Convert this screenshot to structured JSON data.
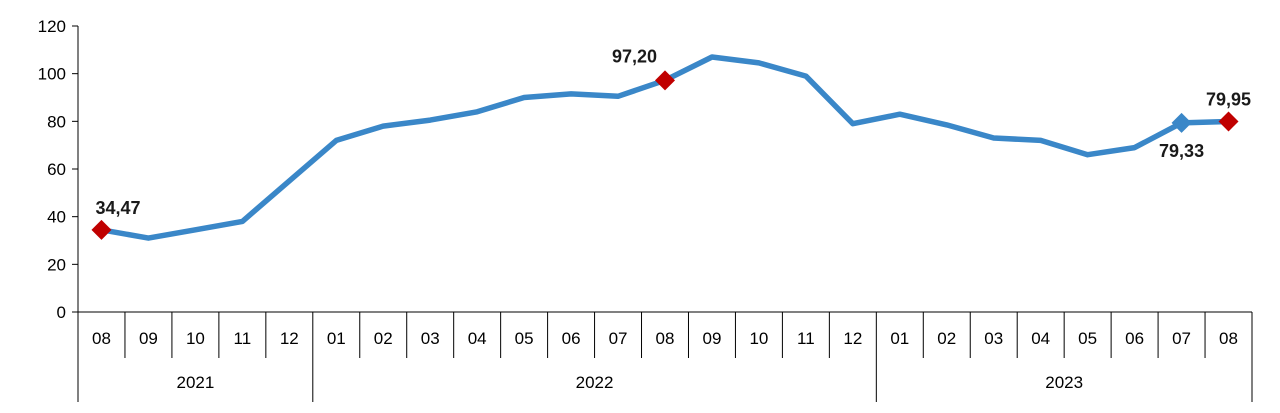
{
  "chart_data": {
    "type": "line",
    "title": "",
    "xlabel": "",
    "ylabel": "",
    "ylim": [
      0,
      120
    ],
    "yticks": [
      "0",
      "20",
      "40",
      "60",
      "80",
      "100",
      "120"
    ],
    "grid": false,
    "legend": "none",
    "categories": [
      "08",
      "09",
      "10",
      "11",
      "12",
      "01",
      "02",
      "03",
      "04",
      "05",
      "06",
      "07",
      "08",
      "09",
      "10",
      "11",
      "12",
      "01",
      "02",
      "03",
      "04",
      "05",
      "06",
      "07",
      "08"
    ],
    "years": [
      {
        "label": "2021",
        "start": 0,
        "end": 4
      },
      {
        "label": "2022",
        "start": 5,
        "end": 16
      },
      {
        "label": "2023",
        "start": 17,
        "end": 24
      }
    ],
    "series": [
      {
        "values": [
          34.47,
          31,
          34.5,
          38,
          55,
          72,
          78,
          80.5,
          84,
          90,
          91.5,
          90.5,
          97.2,
          107,
          104.5,
          99,
          79,
          83,
          78.5,
          73,
          72,
          66,
          69,
          79.33,
          79.95
        ],
        "color": "#3a87c8"
      }
    ],
    "annotations": [
      {
        "index": 0,
        "text": "34,47",
        "marker": "red-diamond",
        "placement": "above-right"
      },
      {
        "index": 12,
        "text": "97,20",
        "marker": "red-diamond",
        "placement": "above-left"
      },
      {
        "index": 23,
        "text": "79,33",
        "marker": "blue-diamond",
        "placement": "below"
      },
      {
        "index": 24,
        "text": "79,95",
        "marker": "red-diamond",
        "placement": "above"
      }
    ],
    "colors": {
      "line": "#3a87c8",
      "highlight": "#c00000",
      "axis": "#000000"
    }
  }
}
